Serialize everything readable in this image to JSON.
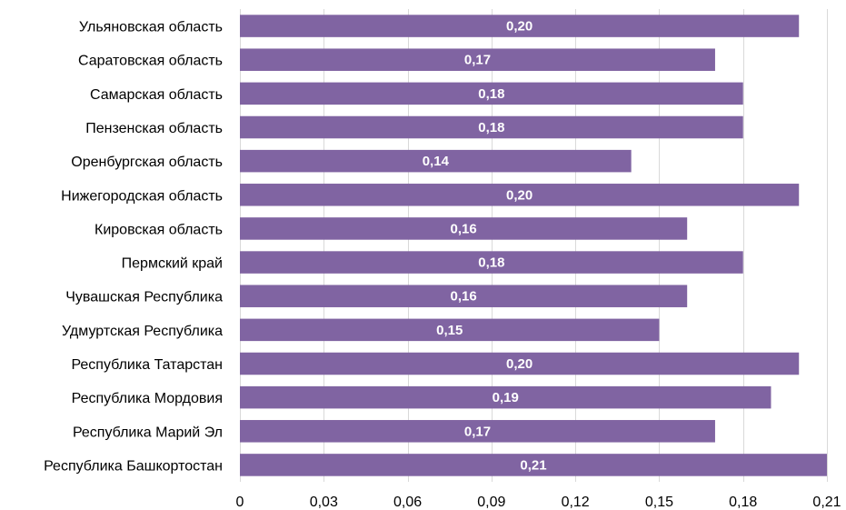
{
  "chart_data": {
    "type": "bar",
    "orientation": "horizontal",
    "categories": [
      "Ульяновская область",
      "Саратовская область",
      "Самарская область",
      "Пензенская область",
      "Оренбургская область",
      "Нижегородская область",
      "Кировская область",
      "Пермский край",
      "Чувашская Республика",
      "Удмуртская Республика",
      "Республика Татарстан",
      "Республика Мордовия",
      "Республика Марий Эл",
      "Республика Башкортостан"
    ],
    "values": [
      0.2,
      0.17,
      0.18,
      0.18,
      0.14,
      0.2,
      0.16,
      0.18,
      0.16,
      0.15,
      0.2,
      0.19,
      0.17,
      0.21
    ],
    "value_labels": [
      "0,20",
      "0,17",
      "0,18",
      "0,18",
      "0,14",
      "0,20",
      "0,16",
      "0,18",
      "0,16",
      "0,15",
      "0,20",
      "0,19",
      "0,17",
      "0,21"
    ],
    "xlim": [
      0,
      0.21
    ],
    "x_ticks": [
      0,
      0.03,
      0.06,
      0.09,
      0.12,
      0.15,
      0.18,
      0.21
    ],
    "x_tick_labels": [
      "0",
      "0,03",
      "0,06",
      "0,09",
      "0,12",
      "0,15",
      "0,18",
      "0,21"
    ],
    "grid": "vertical",
    "legend": "none",
    "bar_color": "#8064a2",
    "grid_color": "#d9d9d9",
    "label_color": "#ffffff"
  }
}
